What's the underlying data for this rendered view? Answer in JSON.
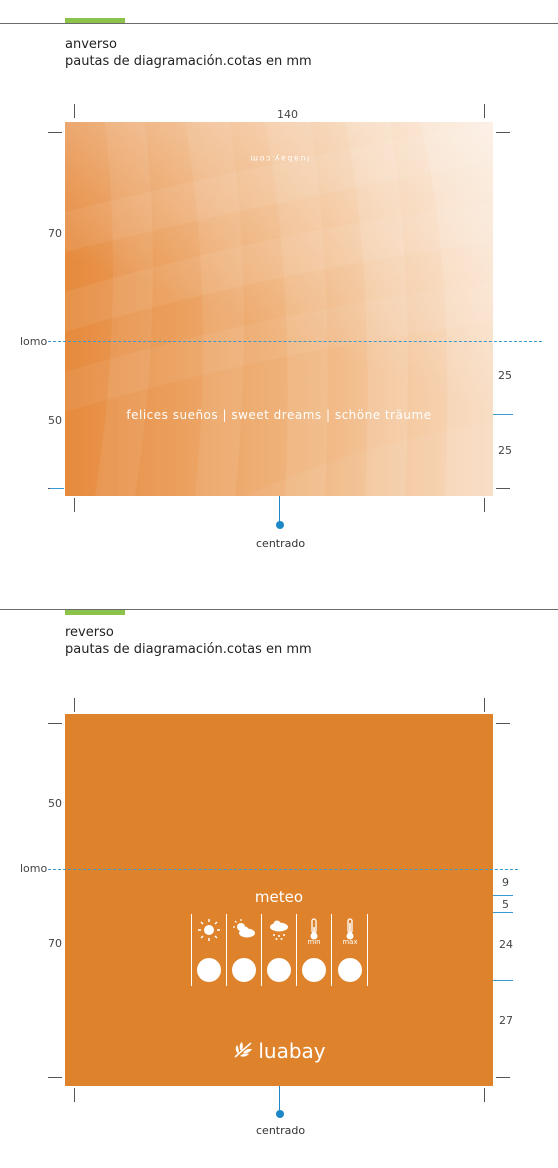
{
  "front": {
    "title": "anverso",
    "subtitle": "pautas de diagramación.cotas en mm",
    "width_label": "140",
    "top_height_label": "70",
    "bottom_height_label": "50",
    "spine_label": "lomo",
    "right_dim_1": "25",
    "right_dim_2": "25",
    "mirrored_text": "luabay.com",
    "tagline": "felices sueños | sweet dreams | schöne träume",
    "center_label": "centrado"
  },
  "back": {
    "title": "reverso",
    "subtitle": "pautas de diagramación.cotas en mm",
    "top_height_label": "50",
    "bottom_height_label": "70",
    "spine_label": "lomo",
    "right_dims": [
      "9",
      "5",
      "24",
      "27"
    ],
    "meteo_title": "meteo",
    "icons": [
      "sun-icon",
      "partly-cloudy-icon",
      "rain-cloud-icon",
      "thermometer-min-icon",
      "thermometer-max-icon"
    ],
    "temp_labels": [
      "min",
      "max"
    ],
    "brand": "luabay",
    "center_label": "centrado"
  },
  "colors": {
    "card_orange": "#de832c",
    "guide_blue": "#3a9bd0",
    "accent_green": "#8bc34a"
  }
}
